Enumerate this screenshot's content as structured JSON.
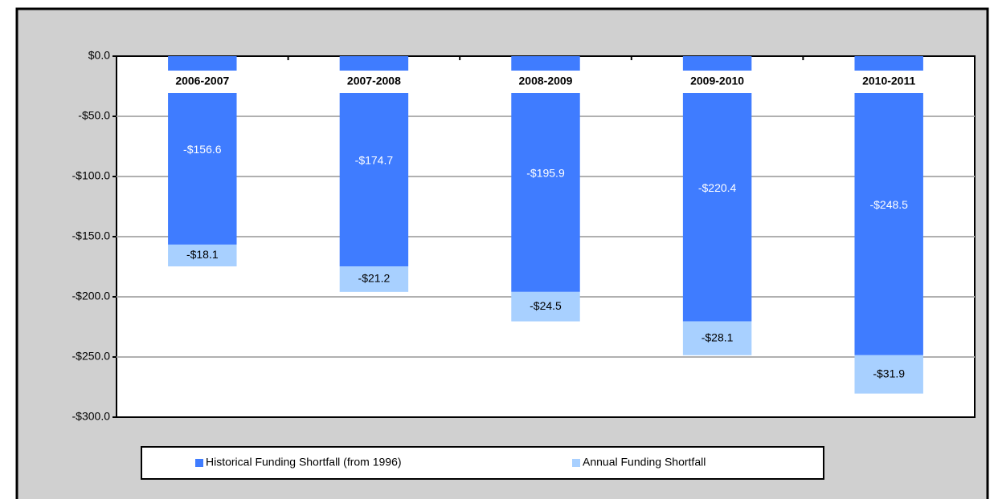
{
  "chart_data": {
    "type": "stacked-bar",
    "categories": [
      "2006-2007",
      "2007-2008",
      "2008-2009",
      "2009-2010",
      "2010-2011"
    ],
    "series": [
      {
        "name": "Historical Funding Shortfall (from 1996)",
        "color": "#3f7cff",
        "values": [
          -156.6,
          -174.7,
          -195.9,
          -220.4,
          -248.5
        ],
        "value_labels": [
          "-$156.6",
          "-$174.7",
          "-$195.9",
          "-$220.4",
          "-$248.5"
        ]
      },
      {
        "name": "Annual Funding Shortfall",
        "color": "#a8d0ff",
        "values": [
          -18.1,
          -21.2,
          -24.5,
          -28.1,
          -31.9
        ],
        "value_labels": [
          "-$18.1",
          "-$21.2",
          "-$24.5",
          "-$28.1",
          "-$31.9"
        ]
      }
    ],
    "ylim": [
      -300,
      0
    ],
    "yticks": [
      {
        "value": 0,
        "label": "$0.0"
      },
      {
        "value": -50,
        "label": "-$50.0"
      },
      {
        "value": -100,
        "label": "-$100.0"
      },
      {
        "value": -150,
        "label": "-$150.0"
      },
      {
        "value": -200,
        "label": "-$200.0"
      },
      {
        "value": -250,
        "label": "-$250.0"
      },
      {
        "value": -300,
        "label": "-$300.0"
      }
    ],
    "grid": true,
    "legend": "bottom"
  }
}
